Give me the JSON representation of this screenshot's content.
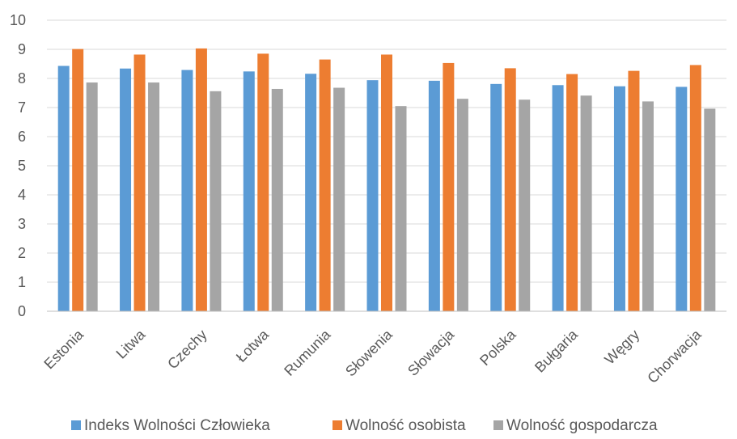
{
  "chart_data": {
    "type": "bar",
    "categories": [
      "Estonia",
      "Litwa",
      "Czechy",
      "Łotwa",
      "Rumunia",
      "Słowenia",
      "Słowacja",
      "Polska",
      "Bułgaria",
      "Węgry",
      "Chorwacja"
    ],
    "series": [
      {
        "name": "Indeks Wolności Człowieka",
        "color": "#5b9bd5",
        "values": [
          8.43,
          8.34,
          8.29,
          8.24,
          8.16,
          7.94,
          7.92,
          7.81,
          7.77,
          7.73,
          7.71
        ]
      },
      {
        "name": "Wolność osobista",
        "color": "#ed7d31",
        "values": [
          9.01,
          8.82,
          9.03,
          8.85,
          8.65,
          8.82,
          8.53,
          8.35,
          8.15,
          8.26,
          8.46
        ]
      },
      {
        "name": "Wolność gospodarcza",
        "color": "#a5a5a5",
        "values": [
          7.86,
          7.86,
          7.56,
          7.64,
          7.68,
          7.05,
          7.3,
          7.27,
          7.41,
          7.21,
          6.96
        ]
      }
    ],
    "title": "",
    "xlabel": "",
    "ylabel": "",
    "ylim": [
      0,
      10
    ],
    "yticks": [
      "0",
      "1",
      "2",
      "3",
      "4",
      "5",
      "6",
      "7",
      "8",
      "9",
      "10"
    ],
    "grid": true,
    "legend_position": "bottom"
  }
}
